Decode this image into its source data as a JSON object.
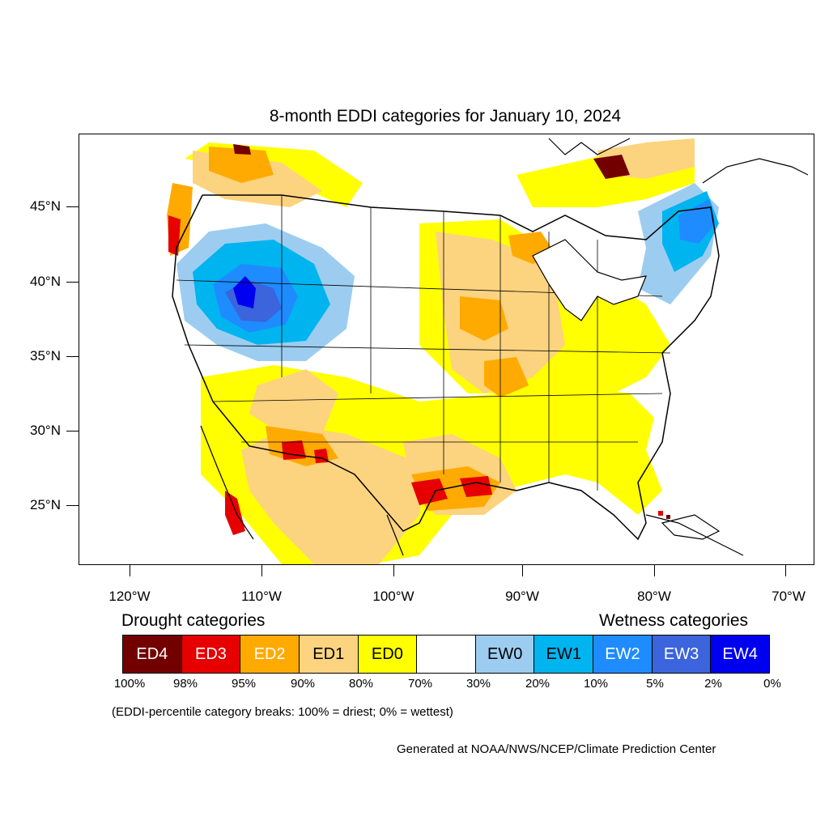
{
  "title": "8-month EDDI categories for January 10, 2024",
  "lat_labels": [
    "45°N",
    "40°N",
    "35°N",
    "30°N",
    "25°N"
  ],
  "lon_labels": [
    "120°W",
    "110°W",
    "100°W",
    "90°W",
    "80°W",
    "70°W"
  ],
  "legend": {
    "drought_heading": "Drought categories",
    "wetness_heading": "Wetness categories",
    "categories": [
      {
        "label": "ED4",
        "color": "#730000",
        "text_color": "#ffffff"
      },
      {
        "label": "ED3",
        "color": "#e60000",
        "text_color": "#ffffff"
      },
      {
        "label": "ED2",
        "color": "#ffaa00",
        "text_color": "#ffffff"
      },
      {
        "label": "ED1",
        "color": "#fcd37f",
        "text_color": "#000000"
      },
      {
        "label": "ED0",
        "color": "#ffff00",
        "text_color": "#000000"
      },
      {
        "label": "",
        "color": "#ffffff",
        "text_color": "#000000"
      },
      {
        "label": "EW0",
        "color": "#9ccdf0",
        "text_color": "#000000"
      },
      {
        "label": "EW1",
        "color": "#00b4f0",
        "text_color": "#000000"
      },
      {
        "label": "EW2",
        "color": "#1e8cff",
        "text_color": "#ffffff"
      },
      {
        "label": "EW3",
        "color": "#3c64dc",
        "text_color": "#ffffff"
      },
      {
        "label": "EW4",
        "color": "#0000f0",
        "text_color": "#ffffff"
      }
    ],
    "ticks": [
      "100%",
      "98%",
      "95%",
      "90%",
      "80%",
      "70%",
      "30%",
      "20%",
      "10%",
      "5%",
      "2%",
      "0%"
    ]
  },
  "breaks_note": "(EDDI-percentile category breaks: 100% = driest; 0% = wettest)",
  "credit": "Generated at NOAA/NWS/NCEP/Climate Prediction Center"
}
